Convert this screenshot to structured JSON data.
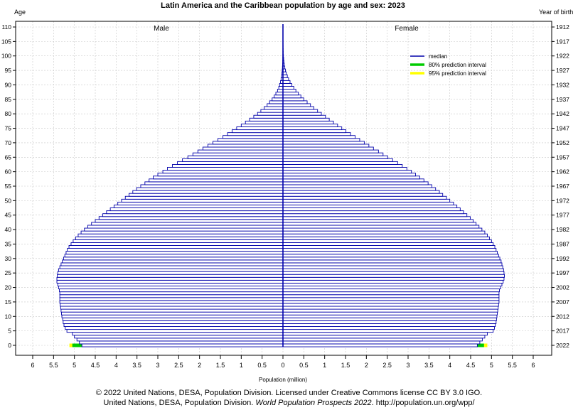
{
  "chart_data": {
    "type": "population-pyramid",
    "title": "Latin America and the Caribbean population by age and sex: 2023",
    "y_left_label": "Age",
    "y_right_label": "Year of birth",
    "x_label": "Population (million)",
    "male_label": "Male",
    "female_label": "Female",
    "x_ticks": [
      "6",
      "5.5",
      "5",
      "4.5",
      "4",
      "3.5",
      "3",
      "2.5",
      "2",
      "1.5",
      "1",
      "0.5",
      "0",
      "0.5",
      "1",
      "1.5",
      "2",
      "2.5",
      "3",
      "3.5",
      "4",
      "4.5",
      "5",
      "5.5",
      "6"
    ],
    "age_ticks": [
      "0",
      "5",
      "10",
      "15",
      "20",
      "25",
      "30",
      "35",
      "40",
      "45",
      "50",
      "55",
      "60",
      "65",
      "70",
      "75",
      "80",
      "85",
      "90",
      "95",
      "100",
      "105",
      "110"
    ],
    "year_ticks": [
      "2022",
      "2017",
      "2012",
      "2007",
      "2002",
      "1997",
      "1992",
      "1987",
      "1982",
      "1977",
      "1972",
      "1967",
      "1962",
      "1957",
      "1952",
      "1947",
      "1942",
      "1937",
      "1932",
      "1927",
      "1922",
      "1917",
      "1912"
    ],
    "xlim": [
      -6,
      6
    ],
    "ylim": [
      0,
      110
    ],
    "grid": true,
    "legend_position": "top-right",
    "legend": [
      {
        "label": "median",
        "color": "#0000aa"
      },
      {
        "label": "80% prediction interval",
        "color": "#00cc00"
      },
      {
        "label": "95% prediction interval",
        "color": "#ffff00"
      }
    ],
    "bar_fill": "#ffffff",
    "bar_stroke": "#0000aa",
    "ages": [
      0,
      1,
      2,
      3,
      4,
      5,
      6,
      7,
      8,
      9,
      10,
      11,
      12,
      13,
      14,
      15,
      16,
      17,
      18,
      19,
      20,
      21,
      22,
      23,
      24,
      25,
      26,
      27,
      28,
      29,
      30,
      31,
      32,
      33,
      34,
      35,
      36,
      37,
      38,
      39,
      40,
      41,
      42,
      43,
      44,
      45,
      46,
      47,
      48,
      49,
      50,
      51,
      52,
      53,
      54,
      55,
      56,
      57,
      58,
      59,
      60,
      61,
      62,
      63,
      64,
      65,
      66,
      67,
      68,
      69,
      70,
      71,
      72,
      73,
      74,
      75,
      76,
      77,
      78,
      79,
      80,
      81,
      82,
      83,
      84,
      85,
      86,
      87,
      88,
      89,
      90,
      91,
      92,
      93,
      94,
      95,
      96,
      97,
      98,
      99,
      100,
      101,
      102,
      103,
      104,
      105,
      106,
      107,
      108,
      109,
      110
    ],
    "male": [
      4.82,
      4.88,
      4.94,
      5.0,
      5.05,
      5.18,
      5.22,
      5.25,
      5.27,
      5.28,
      5.3,
      5.31,
      5.32,
      5.33,
      5.34,
      5.35,
      5.35,
      5.35,
      5.35,
      5.36,
      5.38,
      5.4,
      5.42,
      5.42,
      5.41,
      5.4,
      5.38,
      5.35,
      5.32,
      5.29,
      5.26,
      5.23,
      5.2,
      5.17,
      5.13,
      5.08,
      5.03,
      4.97,
      4.91,
      4.84,
      4.76,
      4.68,
      4.59,
      4.5,
      4.41,
      4.32,
      4.23,
      4.14,
      4.05,
      3.96,
      3.87,
      3.78,
      3.69,
      3.6,
      3.51,
      3.41,
      3.31,
      3.21,
      3.11,
      3.0,
      2.88,
      2.77,
      2.65,
      2.53,
      2.41,
      2.28,
      2.16,
      2.04,
      1.92,
      1.8,
      1.68,
      1.56,
      1.44,
      1.33,
      1.22,
      1.11,
      1.0,
      0.9,
      0.8,
      0.7,
      0.61,
      0.53,
      0.45,
      0.38,
      0.32,
      0.26,
      0.21,
      0.17,
      0.13,
      0.1,
      0.08,
      0.06,
      0.045,
      0.033,
      0.024,
      0.017,
      0.012,
      0.008,
      0.005,
      0.003,
      0.002,
      0.001,
      0.001,
      0.0005,
      0.0003,
      0.0002,
      0.0001,
      0.0001,
      0.0,
      0.0,
      0.0
    ],
    "female": [
      4.66,
      4.72,
      4.78,
      4.84,
      4.9,
      5.04,
      5.07,
      5.09,
      5.11,
      5.12,
      5.13,
      5.14,
      5.15,
      5.16,
      5.17,
      5.18,
      5.18,
      5.18,
      5.18,
      5.19,
      5.22,
      5.25,
      5.28,
      5.3,
      5.31,
      5.3,
      5.29,
      5.27,
      5.25,
      5.23,
      5.2,
      5.17,
      5.14,
      5.11,
      5.08,
      5.04,
      5.0,
      4.95,
      4.9,
      4.84,
      4.77,
      4.7,
      4.63,
      4.56,
      4.49,
      4.41,
      4.33,
      4.25,
      4.17,
      4.09,
      4.0,
      3.92,
      3.83,
      3.75,
      3.66,
      3.57,
      3.48,
      3.38,
      3.28,
      3.18,
      3.08,
      2.97,
      2.86,
      2.75,
      2.63,
      2.51,
      2.4,
      2.29,
      2.17,
      2.06,
      1.95,
      1.84,
      1.73,
      1.62,
      1.51,
      1.41,
      1.31,
      1.21,
      1.11,
      1.02,
      0.92,
      0.83,
      0.74,
      0.66,
      0.58,
      0.5,
      0.43,
      0.37,
      0.31,
      0.26,
      0.21,
      0.17,
      0.135,
      0.105,
      0.08,
      0.06,
      0.044,
      0.032,
      0.023,
      0.016,
      0.011,
      0.007,
      0.005,
      0.003,
      0.002,
      0.001,
      0.0006,
      0.0004,
      0.0002,
      0.0001,
      0.0
    ],
    "age0_intervals": {
      "male": {
        "p80": [
          4.65,
          5.05
        ],
        "p95": [
          4.55,
          5.12
        ]
      },
      "female": {
        "p80": [
          4.5,
          4.82
        ],
        "p95": [
          4.43,
          4.9
        ]
      }
    }
  },
  "footer": {
    "line1": "© 2022 United Nations, DESA, Population Division. Licensed under Creative Commons license CC BY 3.0 IGO.",
    "line2_prefix": "United Nations, DESA, Population Division. ",
    "line2_italic": "World Population Prospects 2022",
    "line2_suffix": ". http://population.un.org/wpp/"
  }
}
